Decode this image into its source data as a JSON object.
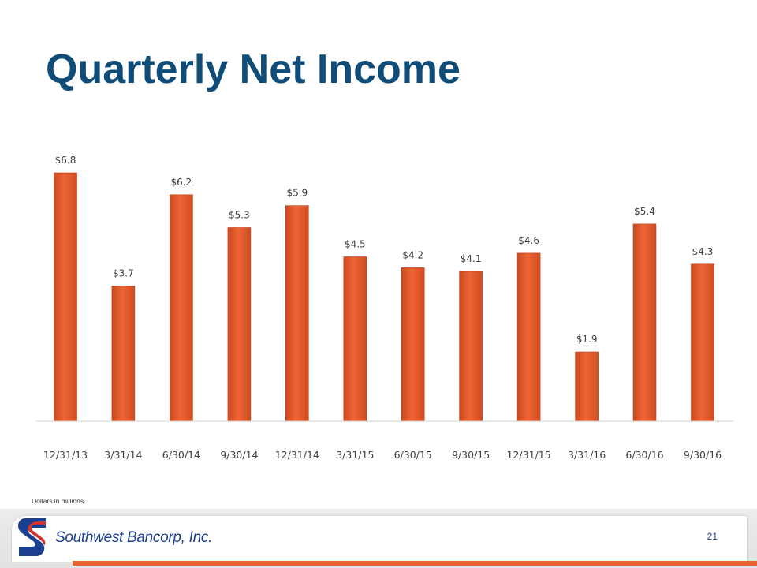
{
  "slide": {
    "title": "Quarterly Net Income",
    "footnote": "Dollars in millions.",
    "page_number": "21"
  },
  "footer": {
    "company_name": "Southwest Bancorp, Inc.",
    "logo_icon": "southwest-bancorp-logo-icon"
  },
  "colors": {
    "title": "#0f4c78",
    "bar": "#e55a2b",
    "accent": "#e6622f",
    "logo_blue": "#1d3f8f",
    "logo_red": "#d1332e"
  },
  "chart_data": {
    "type": "bar",
    "categories": [
      "12/31/13",
      "3/31/14",
      "6/30/14",
      "9/30/14",
      "12/31/14",
      "3/31/15",
      "6/30/15",
      "9/30/15",
      "12/31/15",
      "3/31/16",
      "6/30/16",
      "9/30/16"
    ],
    "values": [
      6.8,
      3.7,
      6.2,
      5.3,
      5.9,
      4.5,
      4.2,
      4.1,
      4.6,
      1.9,
      5.4,
      4.3
    ],
    "value_labels": [
      "$6.8",
      "$3.7",
      "$6.2",
      "$5.3",
      "$5.9",
      "$4.5",
      "$4.2",
      "$4.1",
      "$4.6",
      "$1.9",
      "$5.4",
      "$4.3"
    ],
    "title": "",
    "xlabel": "",
    "ylabel": "",
    "ylim": [
      0,
      6.8
    ],
    "grid": false,
    "legend": false
  }
}
